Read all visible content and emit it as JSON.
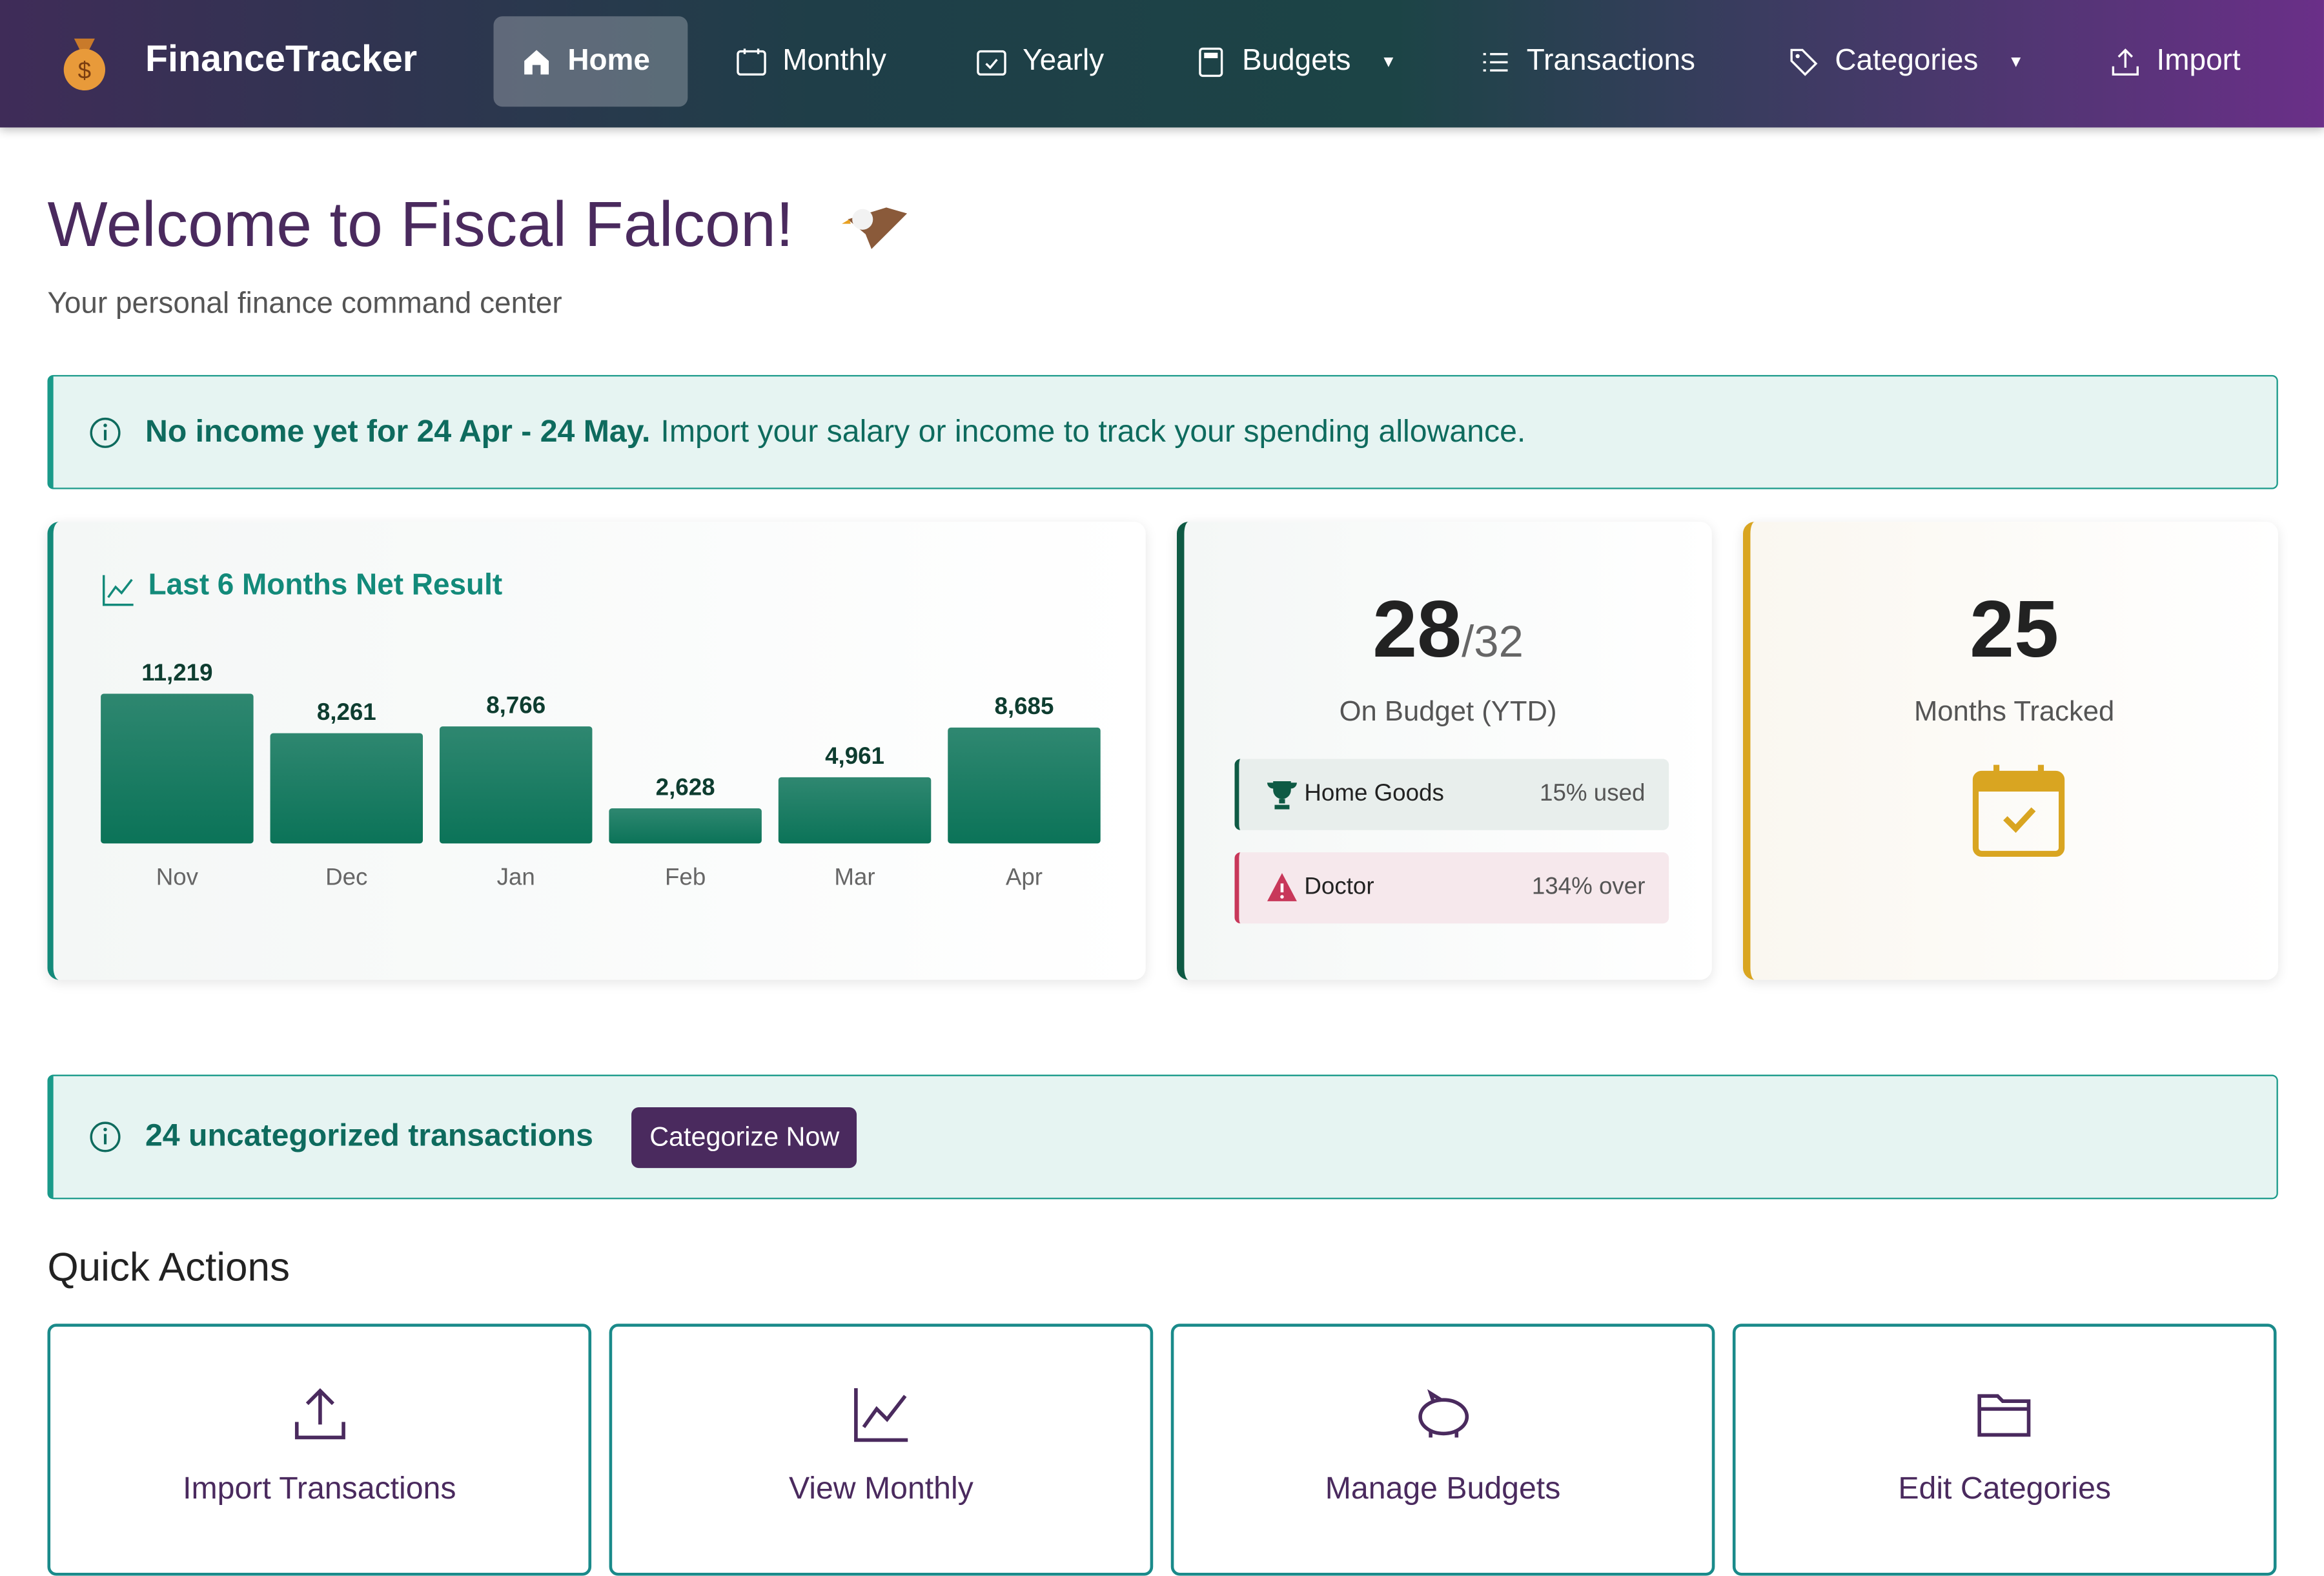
{
  "nav": {
    "brand": "FinanceTracker",
    "items": [
      "Home",
      "Monthly",
      "Yearly",
      "Budgets",
      "Transactions",
      "Categories",
      "Import"
    ],
    "active": 0
  },
  "header": {
    "title": "Welcome to Fiscal Falcon!",
    "subtitle": "Your personal finance command center"
  },
  "income_alert": {
    "strong": "No income yet for 24 Apr - 24 May.",
    "text": "Import your salary or income to track your spending allowance."
  },
  "net_chart": {
    "title": "Last 6 Months Net Result",
    "categories": [
      "Nov",
      "Dec",
      "Jan",
      "Feb",
      "Mar",
      "Apr"
    ],
    "values": [
      11219,
      8261,
      8766,
      2628,
      4961,
      8685
    ],
    "value_labels": [
      "11,219",
      "8,261",
      "8,766",
      "2,628",
      "4,961",
      "8,685"
    ],
    "color": "#0b7358"
  },
  "budget_card": {
    "on_budget": 28,
    "of_total": "/32",
    "label": "On Budget (YTD)",
    "items": [
      {
        "name": "Home Goods",
        "status": "15% used"
      },
      {
        "name": "Doctor",
        "status": "134% over"
      }
    ]
  },
  "months_card": {
    "value": 25,
    "label": "Months Tracked"
  },
  "uncategorized_alert": {
    "text": "24 uncategorized transactions",
    "button": "Categorize Now"
  },
  "quick_actions": {
    "title": "Quick Actions",
    "items": [
      "Import Transactions",
      "View Monthly",
      "Manage Budgets",
      "Edit Categories"
    ]
  }
}
